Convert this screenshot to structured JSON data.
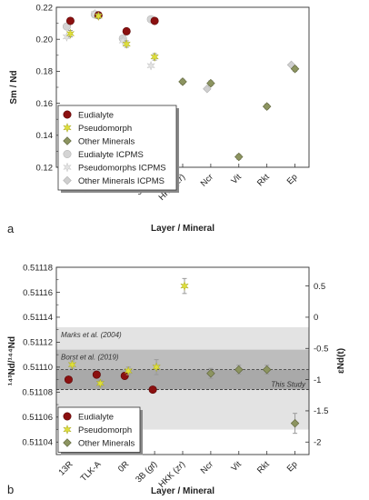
{
  "panel_labels": [
    "a",
    "b"
  ],
  "chart_data": [
    {
      "type": "scatter",
      "ylabel": "Sm / Nd",
      "xlabel": "Layer / Mineral",
      "ylim": [
        0.12,
        0.22
      ],
      "yticks": [
        "0.12",
        "0.14",
        "0.16",
        "0.18",
        "0.20",
        "0.22"
      ],
      "categories": [
        "13R",
        "TLK-A",
        "0R",
        "3B (gt)",
        "HKK (zr)",
        "Ncr",
        "Vit",
        "Rkt",
        "Ep"
      ],
      "italic_parts": {
        "3B (gt)": "gt",
        "HKK (zr)": "zr"
      },
      "legend": {
        "placement": "bottom-left",
        "entries": [
          {
            "name": "Eudialyte",
            "key": "eud"
          },
          {
            "name": "Pseudomorph",
            "key": "pse"
          },
          {
            "name": "Other Minerals",
            "key": "oth"
          },
          {
            "name": "Eudialyte ICPMS",
            "key": "eud_icp"
          },
          {
            "name": "Pseudomorphs ICPMS",
            "key": "pse_icp"
          },
          {
            "name": "Other Minerals ICPMS",
            "key": "oth_icp"
          }
        ]
      },
      "series": [
        {
          "key": "eud",
          "name": "Eudialyte",
          "points": [
            {
              "x": "13R",
              "y": 0.2115,
              "err": 0.0017
            },
            {
              "x": "TLK-A",
              "y": 0.215,
              "err": 0.0015
            },
            {
              "x": "0R",
              "y": 0.205,
              "err": 0.0017
            },
            {
              "x": "3B (gt)",
              "y": 0.2115,
              "err": 0.0017
            }
          ]
        },
        {
          "key": "pse",
          "name": "Pseudomorph",
          "points": [
            {
              "x": "13R",
              "y": 0.2035,
              "err": 0.002
            },
            {
              "x": "TLK-A",
              "y": 0.2145,
              "err": 0.0015
            },
            {
              "x": "0R",
              "y": 0.197,
              "err": 0.002
            },
            {
              "x": "3B (gt)",
              "y": 0.189,
              "err": 0.002
            }
          ]
        },
        {
          "key": "oth",
          "name": "Other Minerals",
          "points": [
            {
              "x": "HKK (zr)",
              "y": 0.1735,
              "err": 0.0015
            },
            {
              "x": "Ncr",
              "y": 0.1725,
              "err": 0.0015
            },
            {
              "x": "Vit",
              "y": 0.1265,
              "err": 0.0015
            },
            {
              "x": "Rkt",
              "y": 0.158,
              "err": 0.0015
            },
            {
              "x": "Ep",
              "y": 0.1815,
              "err": 0.0015
            }
          ]
        },
        {
          "key": "eud_icp",
          "name": "Eudialyte ICPMS",
          "points": [
            {
              "x": "13R",
              "y": 0.208
            },
            {
              "x": "TLK-A",
              "y": 0.2155
            },
            {
              "x": "0R",
              "y": 0.2005
            },
            {
              "x": "3B (gt)",
              "y": 0.2125
            }
          ]
        },
        {
          "key": "pse_icp",
          "name": "Pseudomorphs ICPMS",
          "points": [
            {
              "x": "13R",
              "y": 0.2015
            },
            {
              "x": "TLK-A",
              "y": 0.216
            },
            {
              "x": "0R",
              "y": 0.199
            },
            {
              "x": "3B (gt)",
              "y": 0.1835
            }
          ]
        },
        {
          "key": "oth_icp",
          "name": "Other Minerals ICPMS",
          "points": [
            {
              "x": "Ncr",
              "y": 0.169
            },
            {
              "x": "Ep",
              "y": 0.184
            }
          ]
        }
      ]
    },
    {
      "type": "scatter",
      "ylabel": "¹⁴³Nd/¹⁴⁴Nd",
      "y2label": "εNd(t)",
      "xlabel": "Layer / Mineral",
      "ylim": [
        0.51103,
        0.51118
      ],
      "yticks": [
        "0.51104",
        "0.51106",
        "0.51108",
        "0.51110",
        "0.51112",
        "0.51114",
        "0.51116",
        "0.51118"
      ],
      "y2ticks": [
        "0.5",
        "0",
        "-0.5",
        "-1",
        "-1.5",
        "-2"
      ],
      "epsilon_ticks": [
        {
          "label": "0.5",
          "y": 0.511165
        },
        {
          "label": "0",
          "y": 0.51114
        },
        {
          "label": "-0.5",
          "y": 0.511115
        },
        {
          "label": "-1",
          "y": 0.51109
        },
        {
          "label": "-1.5",
          "y": 0.511065
        },
        {
          "label": "-2",
          "y": 0.51104
        }
      ],
      "categories": [
        "13R",
        "TLK-A",
        "0R",
        "3B (gt)",
        "HKK (zr)",
        "Ncr",
        "Vit",
        "Rkt",
        "Ep"
      ],
      "italic_parts": {
        "3B (gt)": "gt",
        "HKK (zr)": "zr"
      },
      "bands": [
        {
          "label": "Marks et al. (2004)",
          "y0": 0.51105,
          "y1": 0.511132,
          "color": "#e3e3e3"
        },
        {
          "label": "Borst et al. (2019)",
          "y0": 0.511082,
          "y1": 0.511114,
          "color": "#bdbdbd"
        },
        {
          "label": "This Study",
          "y0": 0.511082,
          "y1": 0.511098,
          "color": "#a9a9a9"
        }
      ],
      "legend": {
        "placement": "bottom-left",
        "entries": [
          {
            "name": "Eudialyte",
            "key": "eud"
          },
          {
            "name": "Pseudomorph",
            "key": "pse"
          },
          {
            "name": "Other Minerals",
            "key": "oth"
          }
        ]
      },
      "series": [
        {
          "key": "eud",
          "name": "Eudialyte",
          "points": [
            {
              "x": "13R",
              "y": 0.51109,
              "err": 2e-06
            },
            {
              "x": "TLK-A",
              "y": 0.511094,
              "err": 3e-06
            },
            {
              "x": "0R",
              "y": 0.511093,
              "err": 3e-06
            },
            {
              "x": "3B (gt)",
              "y": 0.511082,
              "err": 2.5e-06
            }
          ]
        },
        {
          "key": "pse",
          "name": "Pseudomorph",
          "points": [
            {
              "x": "13R",
              "y": 0.511102,
              "err": 3e-06
            },
            {
              "x": "TLK-A",
              "y": 0.511087,
              "err": 2.5e-06
            },
            {
              "x": "0R",
              "y": 0.511097,
              "err": 3e-06
            },
            {
              "x": "3B (gt)",
              "y": 0.5111,
              "err": 6e-06
            },
            {
              "x": "HKK (zr)",
              "y": 0.511165,
              "err": 6e-06
            }
          ]
        },
        {
          "key": "oth",
          "name": "Other Minerals",
          "points": [
            {
              "x": "Ncr",
              "y": 0.511095,
              "err": 4e-06
            },
            {
              "x": "Vit",
              "y": 0.511098,
              "err": 3.5e-06
            },
            {
              "x": "Rkt",
              "y": 0.511098,
              "err": 3.5e-06
            },
            {
              "x": "Ep",
              "y": 0.511055,
              "err": 8e-06
            }
          ]
        }
      ]
    }
  ],
  "colors": {
    "eud": "#8b1010",
    "pse": "#dede3a",
    "oth": "#8c9460",
    "eud_icp": "#d4d4d4",
    "pse_icp": "#e2e2e2",
    "oth_icp": "#cfcfcf",
    "errorbar": "#9a9a9a"
  }
}
